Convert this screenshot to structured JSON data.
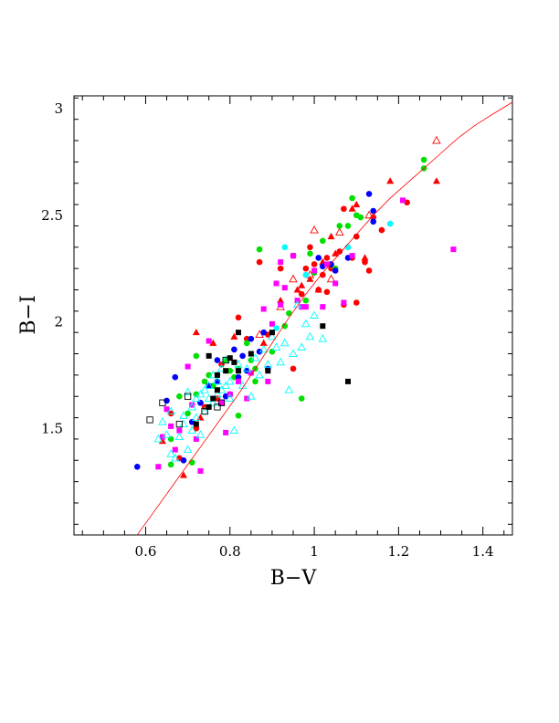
{
  "chart_data": {
    "type": "scatter",
    "xlabel": "B−V",
    "ylabel": "B−I",
    "xlim": [
      0.43,
      1.47
    ],
    "ylim": [
      1.0,
      3.06
    ],
    "x_ticks": [
      "0.6",
      "0.8",
      "1",
      "1.2",
      "1.4"
    ],
    "y_ticks": [
      "1.5",
      "2",
      "2.5",
      "3"
    ],
    "grid": false,
    "colors": {
      "red": "#ff0000",
      "green": "#00e000",
      "blue": "#0000ff",
      "magenta": "#ff00ff",
      "cyan": "#00ffff",
      "black": "#000000",
      "fit_line": "#ff0000"
    },
    "fit_line": {
      "x": [
        0.58,
        0.62,
        0.66,
        0.7,
        0.74,
        0.78,
        0.82,
        0.86,
        0.9,
        0.94,
        0.98,
        1.02,
        1.06,
        1.1,
        1.14,
        1.18,
        1.22,
        1.26,
        1.3,
        1.34,
        1.38,
        1.42,
        1.47
      ],
      "y": [
        1.0,
        1.11,
        1.22,
        1.33,
        1.44,
        1.55,
        1.66,
        1.78,
        1.9,
        2.02,
        2.13,
        2.23,
        2.32,
        2.41,
        2.5,
        2.58,
        2.65,
        2.72,
        2.79,
        2.86,
        2.92,
        2.97,
        3.03
      ]
    },
    "series": [
      {
        "marker": "circle",
        "color": "red",
        "points": [
          [
            0.66,
            1.57
          ],
          [
            0.68,
            1.36
          ],
          [
            0.72,
            1.5
          ],
          [
            0.74,
            1.6
          ],
          [
            0.77,
            1.64
          ],
          [
            0.78,
            1.8
          ],
          [
            0.82,
            2.02
          ],
          [
            0.84,
            1.92
          ],
          [
            0.87,
            2.28
          ],
          [
            0.89,
            1.94
          ],
          [
            0.92,
            2.25
          ],
          [
            0.95,
            2.31
          ],
          [
            0.95,
            1.78
          ],
          [
            0.97,
            2.13
          ],
          [
            0.98,
            2.25
          ],
          [
            0.99,
            2.35
          ],
          [
            1.0,
            2.27
          ],
          [
            1.01,
            2.15
          ],
          [
            1.02,
            2.22
          ],
          [
            1.03,
            2.3
          ],
          [
            1.03,
            2.14
          ],
          [
            1.04,
            2.25
          ],
          [
            1.06,
            2.33
          ],
          [
            1.07,
            2.53
          ],
          [
            1.07,
            2.08
          ],
          [
            1.08,
            2.35
          ],
          [
            1.09,
            2.3
          ],
          [
            1.1,
            2.4
          ],
          [
            1.1,
            2.09
          ],
          [
            1.12,
            2.28
          ],
          [
            1.13,
            2.24
          ],
          [
            1.14,
            2.49
          ],
          [
            1.16,
            2.43
          ],
          [
            1.22,
            2.56
          ]
        ]
      },
      {
        "marker": "triangle",
        "color": "red",
        "points": [
          [
            0.64,
            1.44
          ],
          [
            0.69,
            1.28
          ],
          [
            0.72,
            1.95
          ],
          [
            0.73,
            1.55
          ],
          [
            0.76,
            1.9
          ],
          [
            0.81,
            1.93
          ],
          [
            0.88,
            1.9
          ],
          [
            0.92,
            2.1
          ],
          [
            0.96,
            2.15
          ],
          [
            0.97,
            2.17
          ],
          [
            0.99,
            2.2
          ],
          [
            1.01,
            2.15
          ],
          [
            1.02,
            2.28
          ],
          [
            1.04,
            2.4
          ],
          [
            1.05,
            2.32
          ],
          [
            1.09,
            2.53
          ],
          [
            1.1,
            2.55
          ],
          [
            1.12,
            2.3
          ],
          [
            1.18,
            2.66
          ],
          [
            1.29,
            2.66
          ]
        ]
      },
      {
        "marker": "triangle-open",
        "color": "red",
        "points": [
          [
            0.87,
            1.94
          ],
          [
            0.92,
            2.07
          ],
          [
            0.95,
            2.2
          ],
          [
            0.99,
            2.22
          ],
          [
            1.0,
            2.43
          ],
          [
            1.04,
            2.2
          ],
          [
            1.06,
            2.42
          ],
          [
            1.13,
            2.5
          ],
          [
            1.29,
            2.85
          ]
        ]
      },
      {
        "marker": "circle",
        "color": "green",
        "points": [
          [
            0.66,
            1.45
          ],
          [
            0.66,
            1.33
          ],
          [
            0.68,
            1.65
          ],
          [
            0.7,
            1.57
          ],
          [
            0.71,
            1.34
          ],
          [
            0.72,
            1.66
          ],
          [
            0.72,
            1.84
          ],
          [
            0.73,
            1.62
          ],
          [
            0.74,
            1.72
          ],
          [
            0.75,
            1.75
          ],
          [
            0.76,
            1.7
          ],
          [
            0.77,
            1.75
          ],
          [
            0.79,
            1.82
          ],
          [
            0.8,
            1.77
          ],
          [
            0.81,
            1.74
          ],
          [
            0.82,
            1.56
          ],
          [
            0.82,
            1.78
          ],
          [
            0.84,
            1.9
          ],
          [
            0.85,
            1.82
          ],
          [
            0.86,
            1.78
          ],
          [
            0.86,
            1.72
          ],
          [
            0.87,
            2.34
          ],
          [
            0.9,
            1.86
          ],
          [
            0.93,
            1.98
          ],
          [
            0.94,
            2.04
          ],
          [
            0.97,
            1.64
          ],
          [
            0.98,
            2.1
          ],
          [
            0.99,
            2.32
          ],
          [
            1.0,
            2.23
          ],
          [
            1.02,
            2.38
          ],
          [
            1.05,
            2.25
          ],
          [
            1.06,
            2.45
          ],
          [
            1.08,
            2.45
          ],
          [
            1.09,
            2.58
          ],
          [
            1.1,
            2.5
          ],
          [
            1.11,
            2.49
          ],
          [
            1.26,
            2.76
          ],
          [
            1.26,
            2.72
          ]
        ]
      },
      {
        "marker": "circle",
        "color": "blue",
        "points": [
          [
            0.58,
            1.32
          ],
          [
            0.65,
            1.63
          ],
          [
            0.67,
            1.74
          ],
          [
            0.69,
            1.35
          ],
          [
            0.71,
            1.53
          ],
          [
            0.73,
            1.62
          ],
          [
            0.75,
            1.7
          ],
          [
            0.77,
            1.72
          ],
          [
            0.77,
            1.82
          ],
          [
            0.79,
            1.65
          ],
          [
            0.8,
            1.66
          ],
          [
            0.81,
            1.87
          ],
          [
            0.82,
            1.74
          ],
          [
            0.83,
            1.84
          ],
          [
            0.84,
            1.77
          ],
          [
            0.85,
            1.92
          ],
          [
            0.87,
            1.86
          ],
          [
            0.88,
            1.95
          ],
          [
            0.89,
            1.78
          ],
          [
            1.01,
            2.3
          ],
          [
            1.02,
            2.26
          ],
          [
            1.04,
            2.27
          ],
          [
            1.05,
            2.24
          ],
          [
            1.08,
            2.3
          ],
          [
            1.13,
            2.6
          ],
          [
            1.14,
            2.52
          ],
          [
            1.14,
            2.47
          ]
        ]
      },
      {
        "marker": "square",
        "color": "magenta",
        "points": [
          [
            0.63,
            1.32
          ],
          [
            0.64,
            1.46
          ],
          [
            0.65,
            1.59
          ],
          [
            0.66,
            1.51
          ],
          [
            0.67,
            1.4
          ],
          [
            0.68,
            1.49
          ],
          [
            0.7,
            1.79
          ],
          [
            0.71,
            1.61
          ],
          [
            0.72,
            1.45
          ],
          [
            0.73,
            1.3
          ],
          [
            0.75,
            1.91
          ],
          [
            0.78,
            1.62
          ],
          [
            0.79,
            1.48
          ],
          [
            0.8,
            1.66
          ],
          [
            0.82,
            1.72
          ],
          [
            0.84,
            1.64
          ],
          [
            0.85,
            1.76
          ],
          [
            0.88,
            2.06
          ],
          [
            0.89,
            1.72
          ],
          [
            0.9,
            1.99
          ],
          [
            0.91,
            2.18
          ],
          [
            0.92,
            2.08
          ],
          [
            0.92,
            2.28
          ],
          [
            0.93,
            2.16
          ],
          [
            0.95,
            2.31
          ],
          [
            0.96,
            2.1
          ],
          [
            0.97,
            2.07
          ],
          [
            0.98,
            2.07
          ],
          [
            1.0,
            2.24
          ],
          [
            1.02,
            2.07
          ],
          [
            1.03,
            2.27
          ],
          [
            1.05,
            2.18
          ],
          [
            1.07,
            2.09
          ],
          [
            1.09,
            2.31
          ],
          [
            1.21,
            2.57
          ],
          [
            1.33,
            2.34
          ]
        ]
      },
      {
        "marker": "circle",
        "color": "cyan",
        "points": [
          [
            0.91,
            1.97
          ],
          [
            0.93,
            2.35
          ],
          [
            0.98,
            2.22
          ],
          [
            1.08,
            2.35
          ],
          [
            1.18,
            2.46
          ]
        ]
      },
      {
        "marker": "triangle-open",
        "color": "cyan",
        "points": [
          [
            0.63,
            1.45
          ],
          [
            0.64,
            1.53
          ],
          [
            0.65,
            1.47
          ],
          [
            0.66,
            1.58
          ],
          [
            0.66,
            1.38
          ],
          [
            0.67,
            1.36
          ],
          [
            0.68,
            1.46
          ],
          [
            0.69,
            1.52
          ],
          [
            0.69,
            1.56
          ],
          [
            0.7,
            1.67
          ],
          [
            0.7,
            1.4
          ],
          [
            0.71,
            1.6
          ],
          [
            0.71,
            1.49
          ],
          [
            0.72,
            1.64
          ],
          [
            0.72,
            1.55
          ],
          [
            0.73,
            1.47
          ],
          [
            0.73,
            1.66
          ],
          [
            0.74,
            1.58
          ],
          [
            0.74,
            1.68
          ],
          [
            0.75,
            1.64
          ],
          [
            0.75,
            1.7
          ],
          [
            0.76,
            1.62
          ],
          [
            0.76,
            1.75
          ],
          [
            0.77,
            1.66
          ],
          [
            0.77,
            1.72
          ],
          [
            0.78,
            1.68
          ],
          [
            0.78,
            1.78
          ],
          [
            0.79,
            1.7
          ],
          [
            0.79,
            1.82
          ],
          [
            0.8,
            1.72
          ],
          [
            0.8,
            1.64
          ],
          [
            0.81,
            1.49
          ],
          [
            0.82,
            1.8
          ],
          [
            0.83,
            1.7
          ],
          [
            0.84,
            1.78
          ],
          [
            0.85,
            1.65
          ],
          [
            0.86,
            1.83
          ],
          [
            0.87,
            1.75
          ],
          [
            0.88,
            1.87
          ],
          [
            0.89,
            1.8
          ],
          [
            0.9,
            1.93
          ],
          [
            0.91,
            1.88
          ],
          [
            0.92,
            1.81
          ],
          [
            0.93,
            1.9
          ],
          [
            0.94,
            1.68
          ],
          [
            0.95,
            1.85
          ],
          [
            0.96,
            2.08
          ],
          [
            0.97,
            1.88
          ],
          [
            0.98,
            1.99
          ],
          [
            0.99,
            1.93
          ],
          [
            1.0,
            2.03
          ],
          [
            1.02,
            1.92
          ]
        ]
      },
      {
        "marker": "square",
        "color": "black",
        "points": [
          [
            0.72,
            1.52
          ],
          [
            0.75,
            1.6
          ],
          [
            0.75,
            1.84
          ],
          [
            0.76,
            1.64
          ],
          [
            0.77,
            1.68
          ],
          [
            0.77,
            1.75
          ],
          [
            0.79,
            1.77
          ],
          [
            0.8,
            1.83
          ],
          [
            0.81,
            1.81
          ],
          [
            0.82,
            1.95
          ],
          [
            0.82,
            1.77
          ],
          [
            0.85,
            1.85
          ],
          [
            0.89,
            1.77
          ],
          [
            0.9,
            1.95
          ],
          [
            1.02,
            1.98
          ],
          [
            1.08,
            1.72
          ]
        ]
      },
      {
        "marker": "square-open",
        "color": "black",
        "points": [
          [
            0.61,
            1.54
          ],
          [
            0.64,
            1.62
          ],
          [
            0.68,
            1.52
          ],
          [
            0.7,
            1.65
          ],
          [
            0.74,
            1.58
          ],
          [
            0.77,
            1.6
          ],
          [
            0.78,
            1.62
          ],
          [
            0.79,
            1.82
          ]
        ]
      }
    ]
  }
}
